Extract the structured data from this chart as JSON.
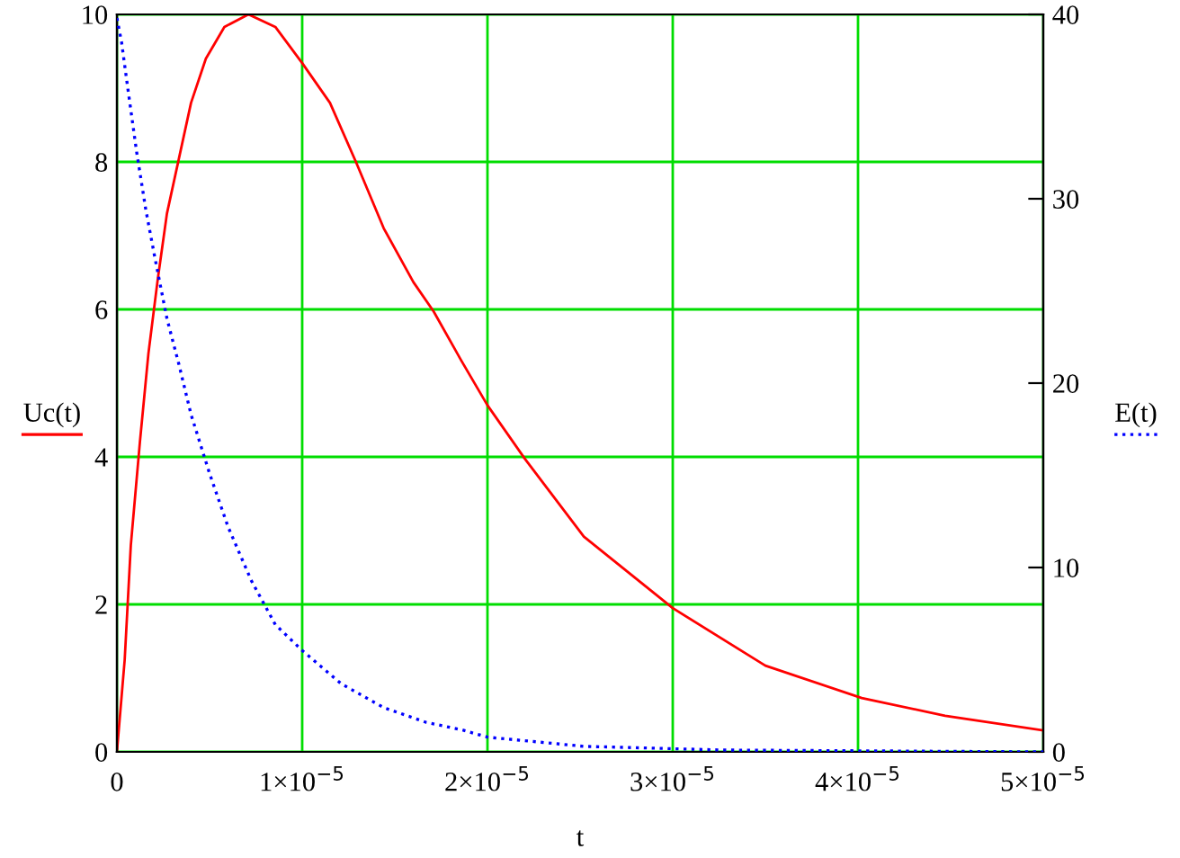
{
  "chart_data": {
    "type": "line",
    "xlabel": "t",
    "ylabel": "Uc(t)",
    "y2label": "E(t)",
    "series": [
      {
        "name": null,
        "color": "#ff0000",
        "line_style": "solid",
        "x": [
          0,
          4.2e-07,
          7.5e-07,
          1.24e-06,
          1.7e-06,
          2.2e-06,
          2.7e-06,
          3.35e-06,
          4e-06,
          4.8e-06,
          5.8e-06,
          7.1e-06,
          8.55e-06,
          1e-05,
          1.15e-05,
          1.29e-05,
          1.44e-05,
          1.6e-05,
          1.71e-05,
          1.86e-05,
          2e-05,
          2.2e-05,
          2.52e-05,
          3e-05,
          3.5e-05,
          4.02e-05,
          4.47e-05,
          5e-05
        ],
        "values": [
          0,
          1.25,
          2.8,
          4.2,
          5.4,
          6.4,
          7.3,
          8.05,
          8.8,
          9.4,
          9.83,
          10.0,
          9.83,
          9.34,
          8.8,
          8.0,
          7.1,
          6.37,
          5.97,
          5.3,
          4.7,
          3.98,
          2.92,
          1.95,
          1.17,
          0.73,
          0.49,
          0.29
        ]
      },
      {
        "name": null,
        "color": "#0000ff",
        "line_style": "dotted",
        "axis": "y2",
        "x": [
          0,
          2.5e-07,
          6e-07,
          1.07e-06,
          1.56e-06,
          2.05e-06,
          2.7e-06,
          3.35e-06,
          4e-06,
          5e-06,
          6e-06,
          7.25e-06,
          8.55e-06,
          1e-05,
          1.21e-05,
          1.44e-05,
          1.67e-05,
          1.86e-05,
          2e-05,
          2.52e-05,
          3.27e-05,
          5e-05
        ],
        "values": [
          39.8,
          38.5,
          35.9,
          32.5,
          29.4,
          26.8,
          23.5,
          21.0,
          18.3,
          15.1,
          12.2,
          9.3,
          6.9,
          5.5,
          3.7,
          2.4,
          1.6,
          1.2,
          0.8,
          0.3,
          0.1,
          0
        ]
      }
    ],
    "xlim": [
      0,
      5e-05
    ],
    "xticks": [
      0,
      {
        "value": 1e-05,
        "label": "1×10$^{−5}$"
      },
      {
        "value": 2e-05,
        "label": "2×10$^{−5}$"
      },
      {
        "value": 3e-05,
        "label": "3×10$^{−5}$"
      },
      {
        "value": 4e-05,
        "label": "4×10$^{−5}$"
      },
      {
        "value": 5e-05,
        "label": "5×10$^{−5}$"
      }
    ],
    "ylim": [
      0,
      10
    ],
    "yticks": [
      0,
      2,
      4,
      6,
      8,
      10
    ],
    "y2lim": [
      0,
      40
    ],
    "y2ticks": [
      0,
      10,
      20,
      30,
      40
    ],
    "grid": true
  }
}
